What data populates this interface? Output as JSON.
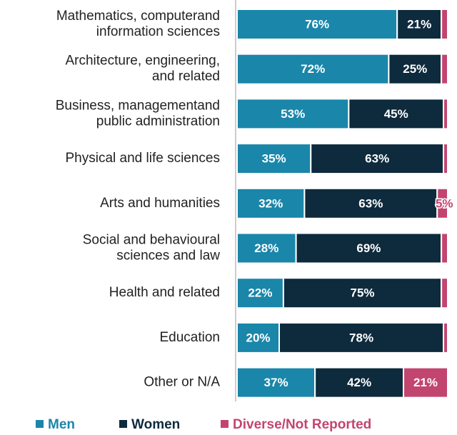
{
  "chart_data": {
    "type": "stacked_bar_horizontal",
    "categories": [
      "Mathematics, computerand\ninformation sciences",
      "Architecture, engineering,\nand related",
      "Business, managementand\npublic administration",
      "Physical and life sciences",
      "Arts and humanities",
      "Social and behavioural\nsciences and law",
      "Health and related",
      "Education",
      "Other or N/A"
    ],
    "series": [
      {
        "name": "Men",
        "color": "#1a86aa",
        "values": [
          76,
          72,
          53,
          35,
          32,
          28,
          22,
          20,
          37
        ],
        "value_labels": [
          "76%",
          "72%",
          "53%",
          "35%",
          "32%",
          "28%",
          "22%",
          "20%",
          "37%"
        ]
      },
      {
        "name": "Women",
        "color": "#0e2a3d",
        "values": [
          21,
          25,
          45,
          63,
          63,
          69,
          75,
          78,
          42
        ],
        "value_labels": [
          "21%",
          "25%",
          "45%",
          "63%",
          "63%",
          "69%",
          "75%",
          "78%",
          "42%"
        ]
      },
      {
        "name": "Diverse/Not Reported",
        "color": "#c2456f",
        "values": [
          3,
          3,
          2,
          2,
          5,
          3,
          3,
          2,
          21
        ],
        "value_labels": [
          null,
          null,
          null,
          null,
          "5%",
          null,
          null,
          null,
          "21%"
        ]
      }
    ],
    "xlim": [
      0,
      100
    ]
  }
}
